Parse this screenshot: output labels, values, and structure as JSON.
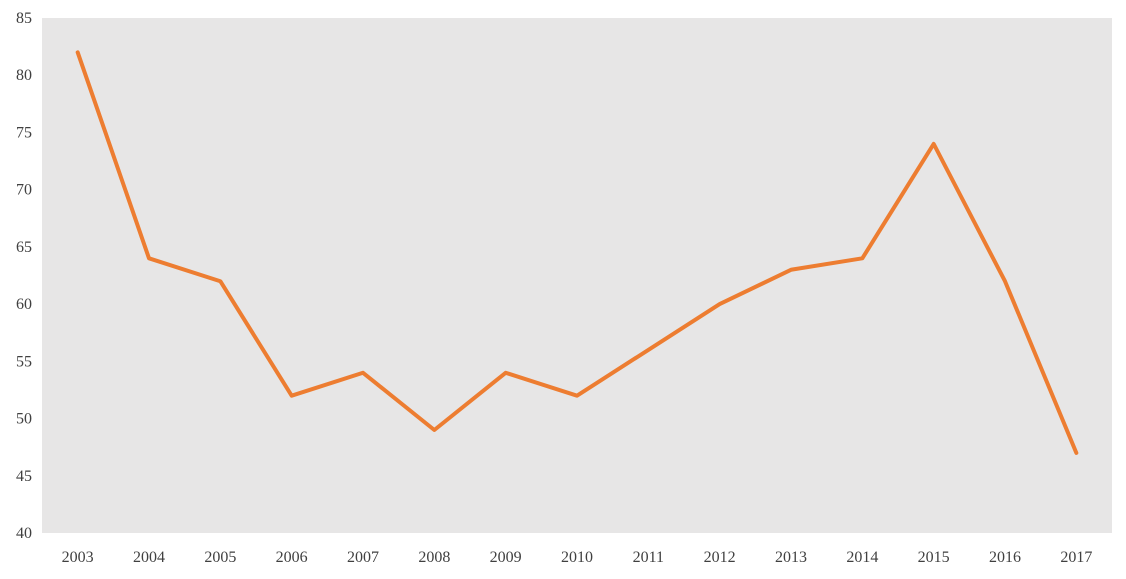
{
  "chart_data": {
    "type": "line",
    "title": "",
    "xlabel": "",
    "ylabel": "",
    "x": [
      "2003",
      "2004",
      "2005",
      "2006",
      "2007",
      "2008",
      "2009",
      "2010",
      "2011",
      "2012",
      "2013",
      "2014",
      "2015",
      "2016",
      "2017"
    ],
    "series": [
      {
        "values": [
          82,
          64,
          62,
          52,
          54,
          49,
          54,
          52,
          56,
          60,
          63,
          64,
          74,
          62,
          47
        ],
        "color": "#ED7D31"
      }
    ],
    "ylim": [
      40,
      85
    ],
    "yticks": [
      40,
      45,
      50,
      55,
      60,
      65,
      70,
      75,
      80,
      85
    ],
    "grid": false,
    "legend": "none",
    "plot_background": "#E7E6E6"
  }
}
